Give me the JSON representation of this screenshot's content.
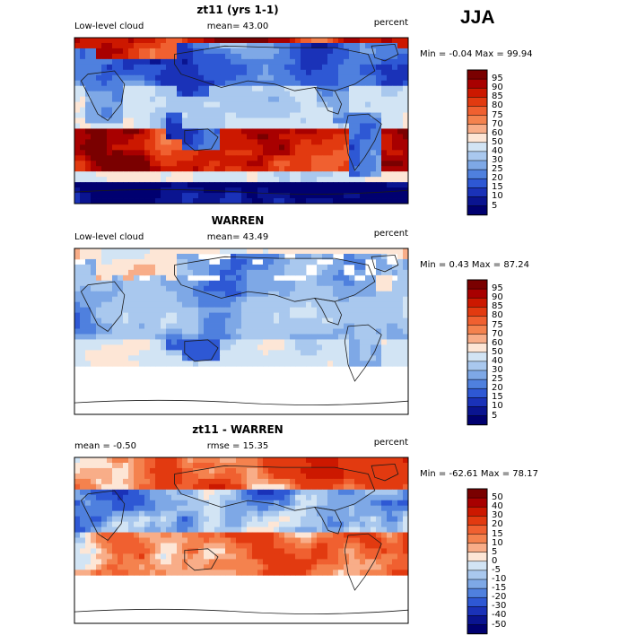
{
  "season": "JJA",
  "panels": [
    {
      "title": "zt11 (yrs 1-1)",
      "left_label": "Low-level cloud",
      "center_label": "mean=   43.00",
      "right_label": "percent",
      "minmax": "Min =   -0.04 Max =   99.94",
      "colorbar": {
        "labels": [
          "95",
          "90",
          "85",
          "80",
          "75",
          "70",
          "60",
          "50",
          "40",
          "30",
          "25",
          "20",
          "15",
          "10",
          "5"
        ],
        "colors": [
          "#7a0000",
          "#a80000",
          "#cc1800",
          "#e23a10",
          "#f06030",
          "#f4824e",
          "#f8ad88",
          "#fde6d6",
          "#d2e4f4",
          "#a9c8ee",
          "#7ea8e6",
          "#4f80de",
          "#2e58d4",
          "#1a32b8",
          "#0a1490",
          "#000070"
        ]
      }
    },
    {
      "title": "WARREN",
      "left_label": "Low-level cloud",
      "center_label": "mean=   43.49",
      "right_label": "percent",
      "minmax": "Min =    0.43 Max =   87.24",
      "colorbar": {
        "labels": [
          "95",
          "90",
          "85",
          "80",
          "75",
          "70",
          "60",
          "50",
          "40",
          "30",
          "25",
          "20",
          "15",
          "10",
          "5"
        ],
        "colors": [
          "#7a0000",
          "#a80000",
          "#cc1800",
          "#e23a10",
          "#f06030",
          "#f4824e",
          "#f8ad88",
          "#fde6d6",
          "#d2e4f4",
          "#a9c8ee",
          "#7ea8e6",
          "#4f80de",
          "#2e58d4",
          "#1a32b8",
          "#0a1490",
          "#000070"
        ]
      }
    },
    {
      "title": "zt11 - WARREN",
      "left_label": "mean =   -0.50",
      "center_label": "rmse =   15.35",
      "right_label": "percent",
      "minmax": "Min =  -62.61 Max =   78.17",
      "colorbar": {
        "labels": [
          "50",
          "40",
          "30",
          "20",
          "15",
          "10",
          "5",
          "0",
          "-5",
          "-10",
          "-15",
          "-20",
          "-30",
          "-40",
          "-50"
        ],
        "colors": [
          "#7a0000",
          "#a80000",
          "#cc1800",
          "#e23a10",
          "#f06030",
          "#f4824e",
          "#f8ad88",
          "#fde6d6",
          "#d2e4f4",
          "#a9c8ee",
          "#7ea8e6",
          "#4f80de",
          "#2e58d4",
          "#1a32b8",
          "#0a1490",
          "#000070"
        ]
      }
    }
  ],
  "chart_data": [
    {
      "type": "heatmap",
      "title": "zt11 (yrs 1-1)",
      "variable": "Low-level cloud",
      "units": "percent",
      "mean": 43.0,
      "min": -0.04,
      "max": 99.94,
      "levels": [
        5,
        10,
        15,
        20,
        25,
        30,
        40,
        50,
        60,
        70,
        75,
        80,
        85,
        90,
        95
      ]
    },
    {
      "type": "heatmap",
      "title": "WARREN",
      "variable": "Low-level cloud",
      "units": "percent",
      "mean": 43.49,
      "min": 0.43,
      "max": 87.24,
      "levels": [
        5,
        10,
        15,
        20,
        25,
        30,
        40,
        50,
        60,
        70,
        75,
        80,
        85,
        90,
        95
      ]
    },
    {
      "type": "heatmap",
      "title": "zt11 - WARREN",
      "units": "percent",
      "mean": -0.5,
      "rmse": 15.35,
      "min": -62.61,
      "max": 78.17,
      "levels": [
        -50,
        -40,
        -30,
        -20,
        -15,
        -10,
        -5,
        0,
        5,
        10,
        15,
        20,
        30,
        40,
        50
      ]
    }
  ]
}
